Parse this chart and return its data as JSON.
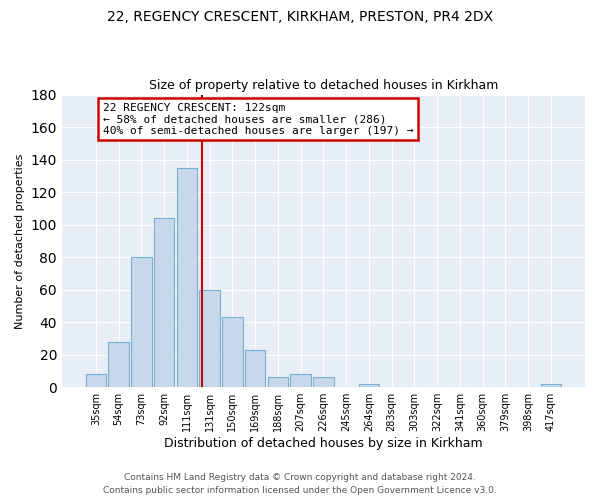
{
  "title1": "22, REGENCY CRESCENT, KIRKHAM, PRESTON, PR4 2DX",
  "title2": "Size of property relative to detached houses in Kirkham",
  "xlabel": "Distribution of detached houses by size in Kirkham",
  "ylabel": "Number of detached properties",
  "bar_labels": [
    "35sqm",
    "54sqm",
    "73sqm",
    "92sqm",
    "111sqm",
    "131sqm",
    "150sqm",
    "169sqm",
    "188sqm",
    "207sqm",
    "226sqm",
    "245sqm",
    "264sqm",
    "283sqm",
    "303sqm",
    "322sqm",
    "341sqm",
    "360sqm",
    "379sqm",
    "398sqm",
    "417sqm"
  ],
  "bar_values": [
    8,
    28,
    80,
    104,
    135,
    60,
    43,
    23,
    6,
    8,
    6,
    0,
    2,
    0,
    0,
    0,
    0,
    0,
    0,
    0,
    2
  ],
  "bar_color": "#c8d8ea",
  "bar_edge_color": "#7aafd4",
  "vline_x": 4.67,
  "vline_color": "#cc0000",
  "ylim": [
    0,
    180
  ],
  "yticks": [
    0,
    20,
    40,
    60,
    80,
    100,
    120,
    140,
    160,
    180
  ],
  "annotation_text": "22 REGENCY CRESCENT: 122sqm\n← 58% of detached houses are smaller (286)\n40% of semi-detached houses are larger (197) →",
  "annotation_box_facecolor": "white",
  "annotation_box_edgecolor": "#cc0000",
  "plot_bg_color": "#e8eef5",
  "fig_bg_color": "#ffffff",
  "footer1": "Contains HM Land Registry data © Crown copyright and database right 2024.",
  "footer2": "Contains public sector information licensed under the Open Government Licence v3.0.",
  "grid_color": "#ffffff",
  "title_fontsize": 10,
  "subtitle_fontsize": 9,
  "ylabel_fontsize": 8,
  "xlabel_fontsize": 9,
  "tick_fontsize": 7,
  "annotation_fontsize": 8,
  "footer_fontsize": 6.5
}
